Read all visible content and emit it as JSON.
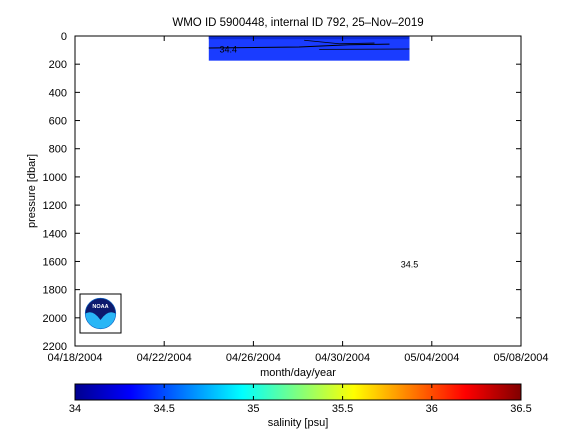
{
  "chart_data": {
    "type": "heatmap",
    "title": "WMO ID 5900448, internal ID 792, 25–Nov–2019",
    "xlabel": "month/day/year",
    "ylabel": "pressure [dbar]",
    "x_tick_labels": [
      "04/18/2004",
      "04/22/2004",
      "04/26/2004",
      "04/30/2004",
      "05/04/2004",
      "05/08/2004"
    ],
    "xlim": [
      "04/18/2004",
      "05/08/2004"
    ],
    "y_ticks": [
      0,
      200,
      400,
      600,
      800,
      1000,
      1200,
      1400,
      1600,
      1800,
      2000,
      2200
    ],
    "ylim": [
      0,
      2200
    ],
    "y_reversed": true,
    "grid": false,
    "colormap": "jet",
    "colorbar": {
      "label": "salinity [psu]",
      "range": [
        34,
        36.5
      ],
      "ticks": [
        "34",
        "34.5",
        "35",
        "35.5",
        "36",
        "36.5"
      ]
    },
    "data_extent": {
      "x": [
        "04/24/2004",
        "05/03/2004"
      ],
      "pressure": [
        0,
        175
      ],
      "salinity": 34.4,
      "color": "#1a3cff"
    },
    "contour_labels": [
      {
        "text": "34.4",
        "x": "04/24/2004 21:00",
        "y": 95
      },
      {
        "text": "34.5",
        "x": "05/03/2004 00:00",
        "y": 1620
      }
    ],
    "logo": "noaa-logo"
  }
}
